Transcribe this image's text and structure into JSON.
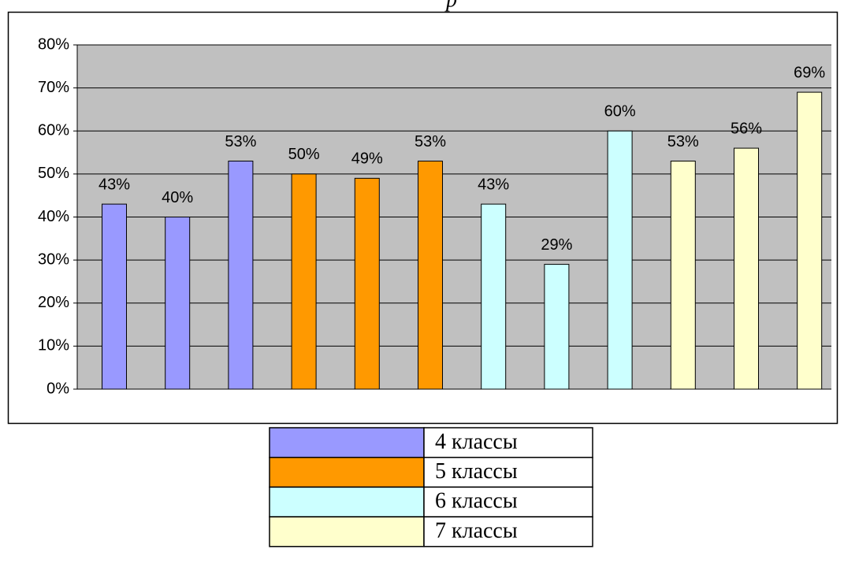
{
  "chart_data": {
    "type": "bar",
    "title": "р",
    "series": [
      {
        "name": "4 классы",
        "color": "#9999ff",
        "values": [
          43,
          40,
          53
        ],
        "value_labels": [
          "43%",
          "40%",
          "53%"
        ]
      },
      {
        "name": "5 классы",
        "color": "#ff9900",
        "values": [
          50,
          49,
          53
        ],
        "value_labels": [
          "50%",
          "49%",
          "53%"
        ]
      },
      {
        "name": "6 классы",
        "color": "#ccffff",
        "values": [
          43,
          29,
          60
        ],
        "value_labels": [
          "43%",
          "29%",
          "60%"
        ]
      },
      {
        "name": "7 классы",
        "color": "#ffffcc",
        "values": [
          53,
          56,
          69
        ],
        "value_labels": [
          "53%",
          "56%",
          "69%"
        ]
      }
    ],
    "ylim": [
      0,
      80
    ],
    "yticks": [
      {
        "value": 0,
        "label": "0%"
      },
      {
        "value": 10,
        "label": "10%"
      },
      {
        "value": 20,
        "label": "20%"
      },
      {
        "value": 30,
        "label": "30%"
      },
      {
        "value": 40,
        "label": "40%"
      },
      {
        "value": 50,
        "label": "50%"
      },
      {
        "value": 60,
        "label": "60%"
      },
      {
        "value": 70,
        "label": "70%"
      },
      {
        "value": 80,
        "label": "80%"
      }
    ],
    "grid": true,
    "plot_background": "#c0c0c0"
  }
}
